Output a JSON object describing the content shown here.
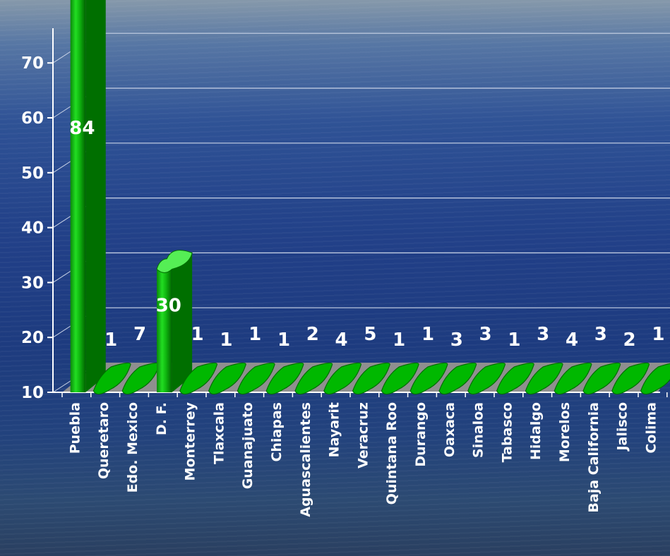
{
  "chart_data": {
    "type": "bar",
    "style": "3d-cylinder",
    "categories": [
      "Puebla",
      "Queretaro",
      "Edo. Mexico",
      "D. F.",
      "Monterrey",
      "Tlaxcala",
      "Guanajuato",
      "Chiapas",
      "Aguascalientes",
      "Nayarit",
      "Veracruz",
      "Quintana Roo",
      "Durango",
      "Oaxaca",
      "Sinaloa",
      "Tabasco",
      "Hidalgo",
      "Morelos",
      "Baja California",
      "Jalisco",
      "Colima"
    ],
    "values": [
      84,
      1,
      7,
      30,
      1,
      1,
      1,
      1,
      2,
      4,
      5,
      1,
      1,
      3,
      3,
      1,
      3,
      4,
      3,
      2,
      1
    ],
    "data_labels": [
      "84",
      "1",
      "7",
      "30",
      "1",
      "1",
      "1",
      "1",
      "2",
      "4",
      "5",
      "1",
      "1",
      "3",
      "3",
      "1",
      "3",
      "4",
      "3",
      "2",
      "1"
    ],
    "ylim": [
      10,
      70
    ],
    "yticks": [
      10,
      20,
      30,
      40,
      50,
      60,
      70
    ],
    "grid": true,
    "legend": "none",
    "title": "",
    "xlabel": "",
    "ylabel": "",
    "colors": {
      "bar_fill": "#00b800",
      "bar_light": "#55ee55",
      "bar_dark": "#006f00",
      "floor": "#8f8f8f",
      "axis": "#ffffff",
      "text": "#ffffff"
    }
  }
}
